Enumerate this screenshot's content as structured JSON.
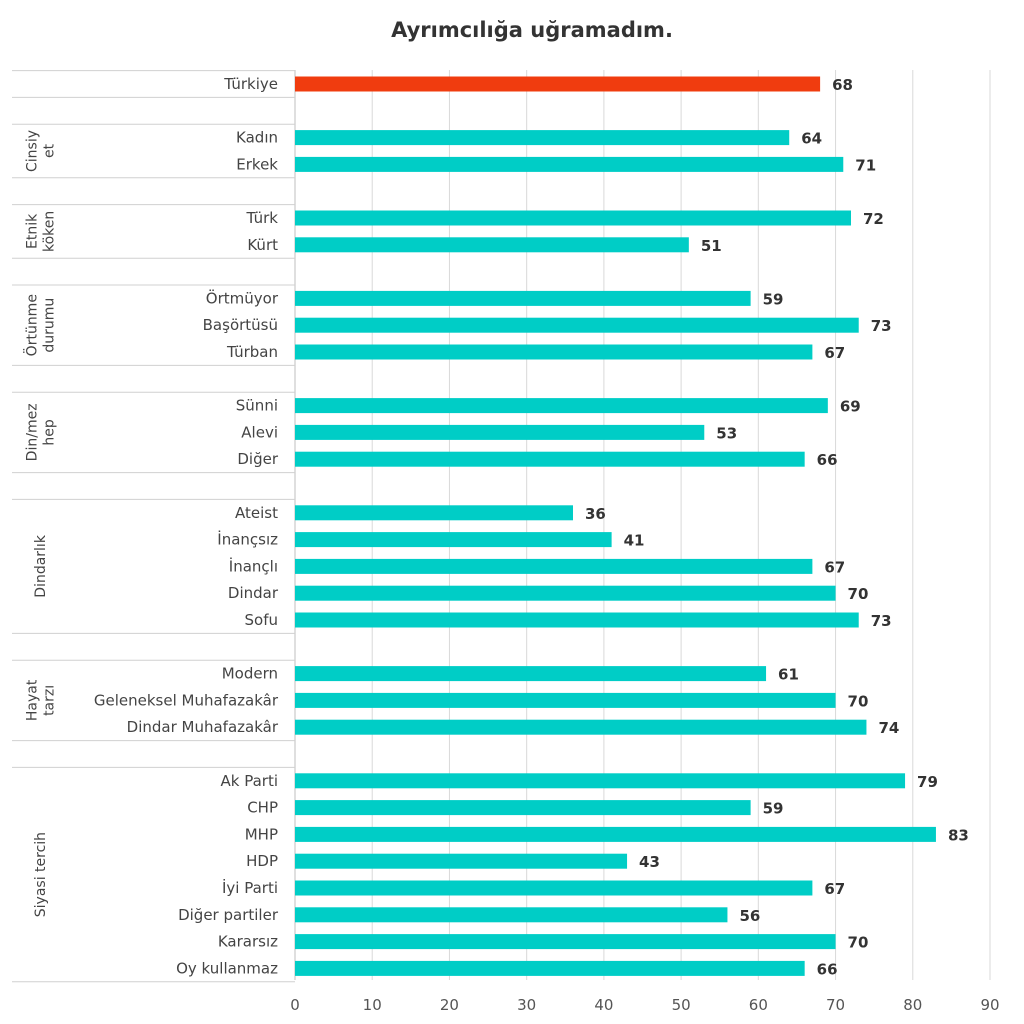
{
  "chart_data": {
    "type": "bar",
    "orientation": "horizontal",
    "title": "Ayrımcılığa uğramadım.",
    "xlim": [
      0,
      90
    ],
    "xticks": [
      0,
      10,
      20,
      30,
      40,
      50,
      60,
      70,
      80,
      90
    ],
    "grid": true,
    "colors": {
      "highlight": "#f03c0f",
      "default": "#00cdc6"
    },
    "groups": [
      {
        "label": "",
        "items": [
          {
            "category": "Türkiye",
            "value": 68,
            "highlight": true
          }
        ]
      },
      {
        "label": "Cinsiy et",
        "lines": [
          "Cinsiy",
          "et"
        ],
        "items": [
          {
            "category": "Kadın",
            "value": 64
          },
          {
            "category": "Erkek",
            "value": 71
          }
        ]
      },
      {
        "label": "Etnik köken",
        "lines": [
          "Etnik",
          "köken"
        ],
        "items": [
          {
            "category": "Türk",
            "value": 72
          },
          {
            "category": "Kürt",
            "value": 51
          }
        ]
      },
      {
        "label": "Örtünme durumu",
        "lines": [
          "Örtünme",
          "durumu"
        ],
        "items": [
          {
            "category": "Örtmüyor",
            "value": 59
          },
          {
            "category": "Başörtüsü",
            "value": 73
          },
          {
            "category": "Türban",
            "value": 67
          }
        ]
      },
      {
        "label": "Din/mez hep",
        "lines": [
          "Din/mez",
          "hep"
        ],
        "items": [
          {
            "category": "Sünni",
            "value": 69
          },
          {
            "category": "Alevi",
            "value": 53
          },
          {
            "category": "Diğer",
            "value": 66
          }
        ]
      },
      {
        "label": "Dindarlık",
        "lines": [
          "Dindarlık"
        ],
        "items": [
          {
            "category": "Ateist",
            "value": 36
          },
          {
            "category": "İnançsız",
            "value": 41
          },
          {
            "category": "İnançlı",
            "value": 67
          },
          {
            "category": "Dindar",
            "value": 70
          },
          {
            "category": "Sofu",
            "value": 73
          }
        ]
      },
      {
        "label": "Hayat tarzı",
        "lines": [
          "Hayat",
          "tarzı"
        ],
        "items": [
          {
            "category": "Modern",
            "value": 61
          },
          {
            "category": "Geleneksel Muhafazakâr",
            "value": 70
          },
          {
            "category": "Dindar Muhafazakâr",
            "value": 74
          }
        ]
      },
      {
        "label": "Siyasi tercih",
        "lines": [
          "Siyasi tercih"
        ],
        "items": [
          {
            "category": "Ak Parti",
            "value": 79
          },
          {
            "category": "CHP",
            "value": 59
          },
          {
            "category": "MHP",
            "value": 83
          },
          {
            "category": "HDP",
            "value": 43
          },
          {
            "category": "İyi Parti",
            "value": 67
          },
          {
            "category": "Diğer partiler",
            "value": 56
          },
          {
            "category": "Kararsız",
            "value": 70
          },
          {
            "category": "Oy kullanmaz",
            "value": 66
          }
        ]
      }
    ]
  }
}
